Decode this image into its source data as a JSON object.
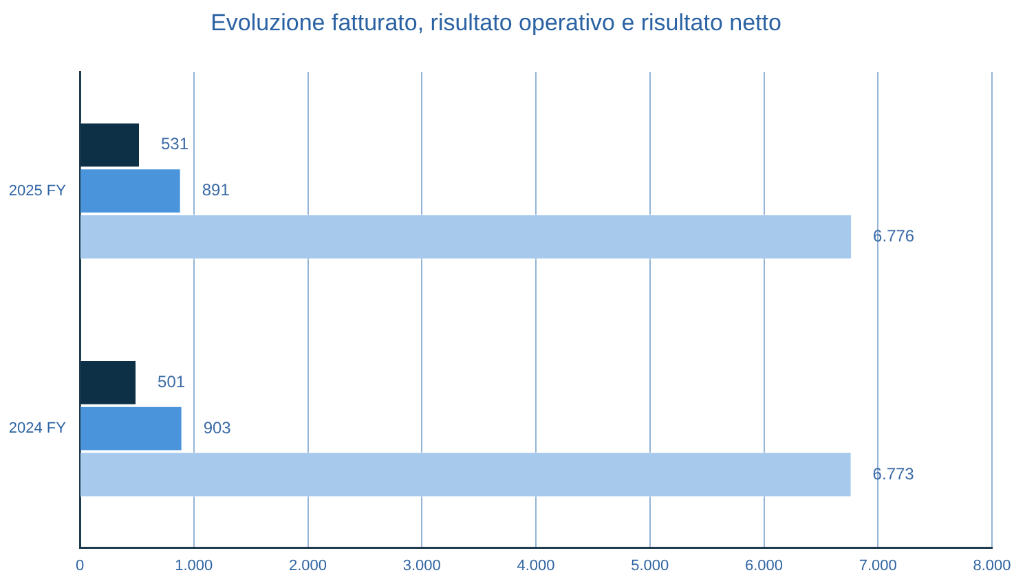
{
  "chart_data": {
    "type": "bar",
    "orientation": "horizontal",
    "title": "Evoluzione fatturato, risultato operativo e risultato netto",
    "categories": [
      "2025 FY",
      "2024 FY"
    ],
    "series": [
      {
        "color": "#0d3046",
        "values": [
          531,
          501
        ],
        "value_labels": [
          "531",
          "501"
        ]
      },
      {
        "color": "#4a94db",
        "values": [
          891,
          903
        ],
        "value_labels": [
          "891",
          "903"
        ]
      },
      {
        "color": "#a6c9ec",
        "values": [
          6776,
          6773
        ],
        "value_labels": [
          "6.776",
          "6.773"
        ]
      }
    ],
    "xlim": [
      0,
      8000
    ],
    "xticks": [
      0,
      {
        "value": 1000,
        "label": "1.000"
      },
      {
        "value": 2000,
        "label": "2.000"
      },
      {
        "value": 3000,
        "label": "3.000"
      },
      {
        "value": 4000,
        "label": "4.000"
      },
      {
        "value": 5000,
        "label": "5.000"
      },
      {
        "value": 6000,
        "label": "6.000"
      },
      {
        "value": 7000,
        "label": "7.000"
      },
      {
        "value": 8000,
        "label": "8.000"
      }
    ],
    "grid": "x",
    "legend": false
  }
}
